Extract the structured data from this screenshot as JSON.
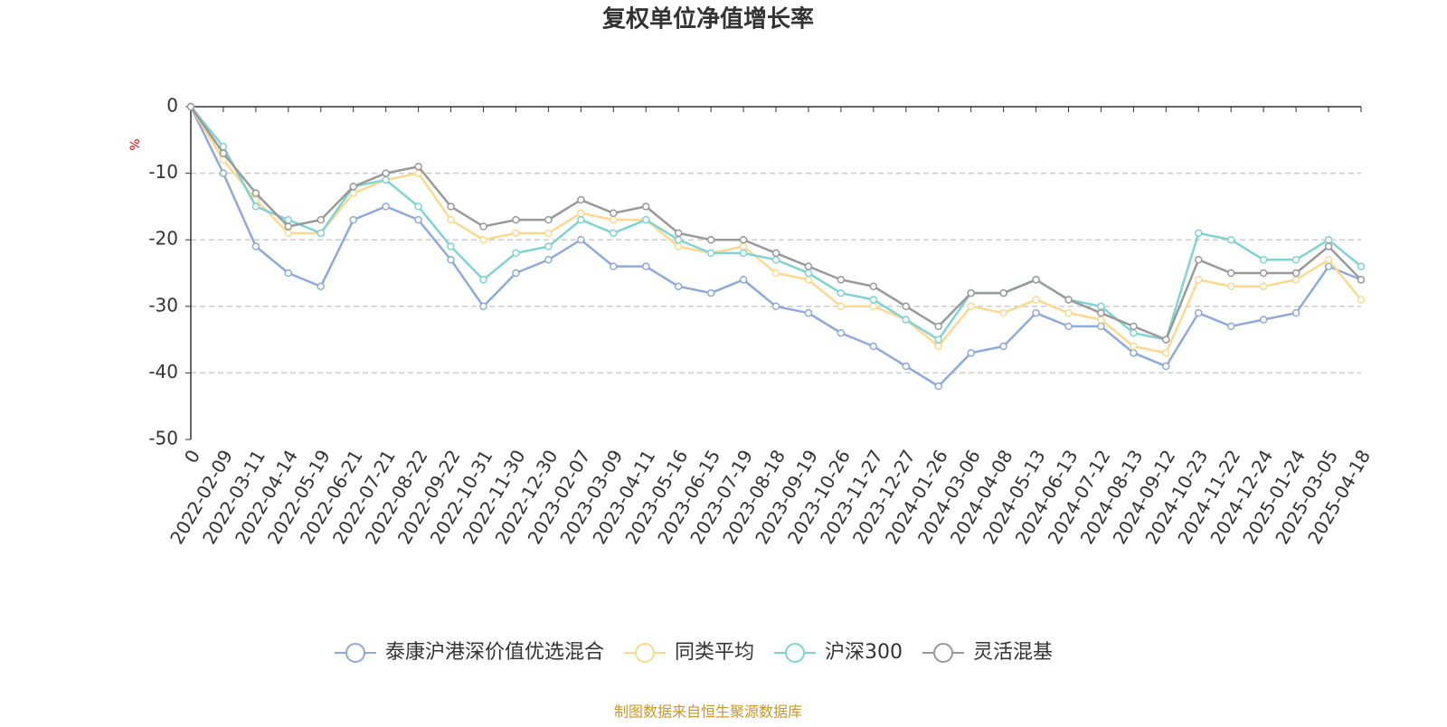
{
  "chart_data": {
    "type": "line",
    "title": "复权单位净值增长率",
    "y_label": "%",
    "source": "制图数据来自恒生聚源数据库",
    "categories": [
      "0",
      "2022-02-09",
      "2022-03-11",
      "2022-04-14",
      "2022-05-19",
      "2022-06-21",
      "2022-07-21",
      "2022-08-22",
      "2022-09-22",
      "2022-10-31",
      "2022-11-30",
      "2022-12-30",
      "2023-02-07",
      "2023-03-09",
      "2023-04-11",
      "2023-05-16",
      "2023-06-15",
      "2023-07-19",
      "2023-08-18",
      "2023-09-19",
      "2023-10-26",
      "2023-11-27",
      "2023-12-27",
      "2024-01-26",
      "2024-03-06",
      "2024-04-08",
      "2024-05-13",
      "2024-06-13",
      "2024-07-12",
      "2024-08-13",
      "2024-09-12",
      "2024-10-23",
      "2024-11-22",
      "2024-12-24",
      "2025-01-24",
      "2025-03-05",
      "2025-04-18"
    ],
    "series": [
      {
        "name": "泰康沪港深价值优选混合",
        "color": "#8eaadb",
        "values": [
          0,
          -10,
          -21,
          -25,
          -27,
          -17,
          -15,
          -17,
          -23,
          -30,
          -25,
          -23,
          -20,
          -24,
          -24,
          -27,
          -28,
          -26,
          -30,
          -31,
          -34,
          -36,
          -39,
          -42,
          -37,
          -36,
          -31,
          -33,
          -33,
          -37,
          -39,
          -31,
          -33,
          -32,
          -31,
          -24,
          -26
        ]
      },
      {
        "name": "同类平均",
        "color": "#ffd88f",
        "values": [
          0,
          -8,
          -14,
          -19,
          -19,
          -13,
          -11,
          -10,
          -17,
          -20,
          -19,
          -19,
          -16,
          -17,
          -17,
          -21,
          -22,
          -21,
          -25,
          -26,
          -30,
          -30,
          -32,
          -36,
          -30,
          -31,
          -29,
          -31,
          -32,
          -36,
          -37,
          -26,
          -27,
          -27,
          -26,
          -23,
          -29
        ]
      },
      {
        "name": "沪深300",
        "color": "#7fd3d3",
        "values": [
          0,
          -6,
          -15,
          -17,
          -19,
          -12,
          -11,
          -15,
          -21,
          -26,
          -22,
          -21,
          -17,
          -19,
          -17,
          -20,
          -22,
          -22,
          -23,
          -25,
          -28,
          -29,
          -32,
          -35,
          -28,
          -28,
          -26,
          -29,
          -30,
          -34,
          -35,
          -19,
          -20,
          -23,
          -23,
          -20,
          -24
        ]
      },
      {
        "name": "灵活混基",
        "color": "#999999",
        "values": [
          0,
          -7,
          -13,
          -18,
          -17,
          -12,
          -10,
          -9,
          -15,
          -18,
          -17,
          -17,
          -14,
          -16,
          -15,
          -19,
          -20,
          -20,
          -22,
          -24,
          -26,
          -27,
          -30,
          -33,
          -28,
          -28,
          -26,
          -29,
          -31,
          -33,
          -35,
          -23,
          -25,
          -25,
          -25,
          -21,
          -26
        ]
      }
    ],
    "ylim": [
      -50,
      0
    ],
    "yticks": [
      0,
      -10,
      -20,
      -30,
      -40,
      -50
    ],
    "grid": true
  }
}
